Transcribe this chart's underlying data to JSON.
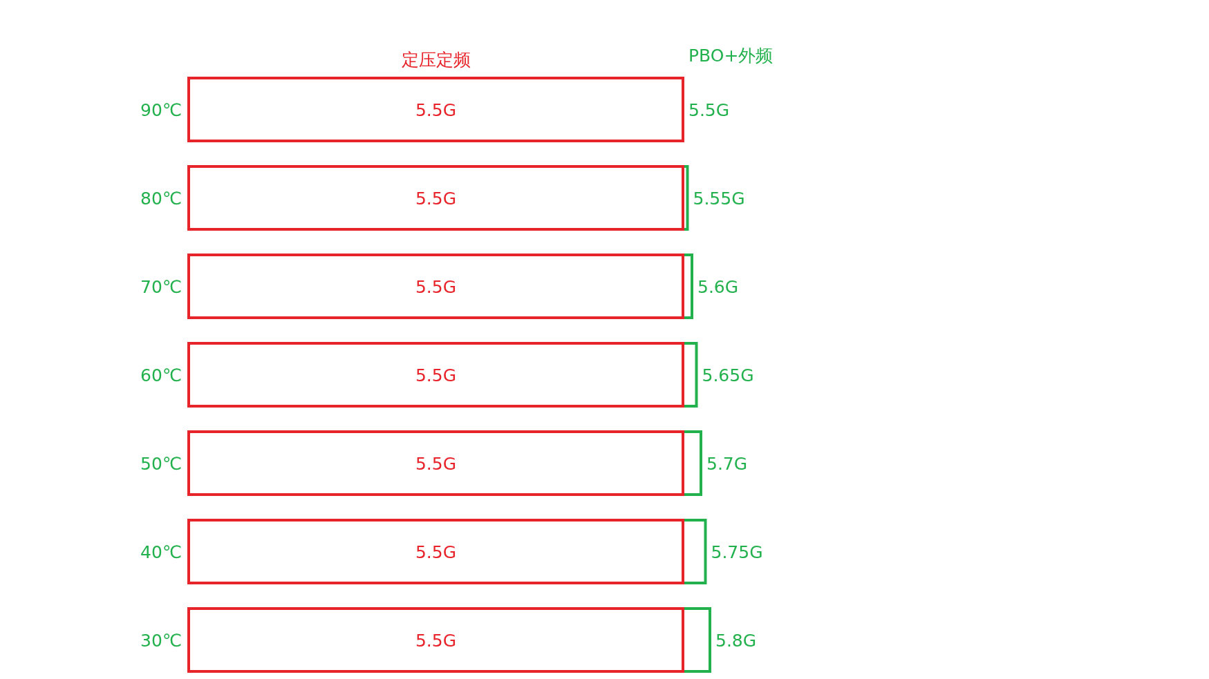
{
  "chart_data": {
    "type": "bar",
    "orientation": "horizontal",
    "stacked": true,
    "categories": [
      "90℃",
      "80℃",
      "70℃",
      "60℃",
      "50℃",
      "40℃",
      "30℃"
    ],
    "series": [
      {
        "name": "定压定频",
        "color": "#e8242b",
        "values": [
          5.5,
          5.5,
          5.5,
          5.5,
          5.5,
          5.5,
          5.5
        ],
        "value_labels": [
          "5.5G",
          "5.5G",
          "5.5G",
          "5.5G",
          "5.5G",
          "5.5G",
          "5.5G"
        ]
      },
      {
        "name": "PBO+外频",
        "color": "#22b14c",
        "values": [
          0,
          0.05,
          0.1,
          0.15,
          0.2,
          0.25,
          0.3
        ]
      }
    ],
    "totals": [
      "5.5G",
      "5.55G",
      "5.6G",
      "5.65G",
      "5.7G",
      "5.75G",
      "5.8G"
    ]
  }
}
